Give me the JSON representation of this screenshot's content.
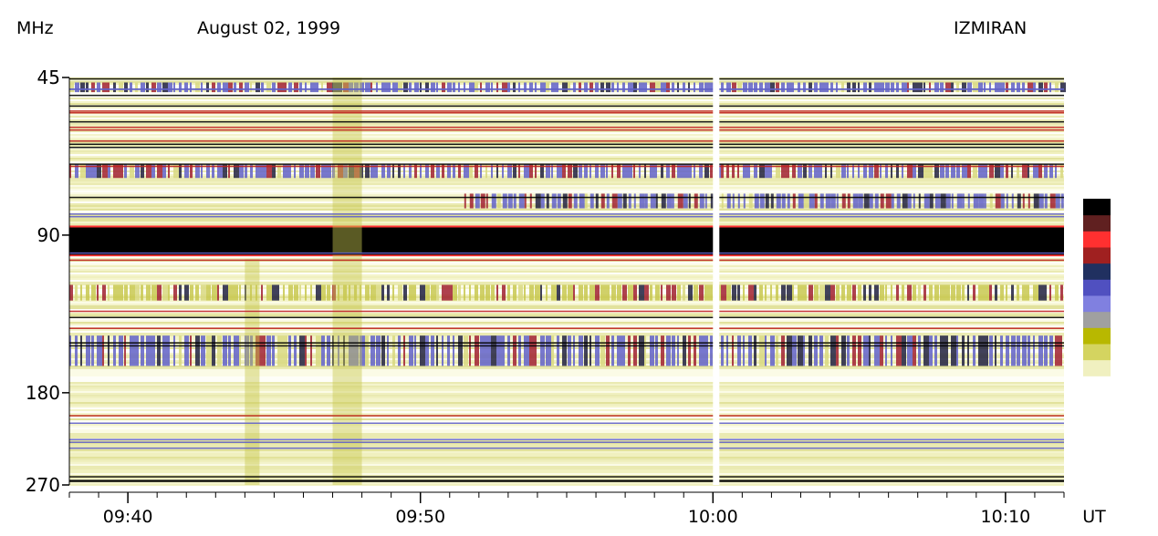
{
  "header": {
    "unit_label": "MHz",
    "date": "August 02, 1999",
    "observatory": "IZMIRAN"
  },
  "chart_data": {
    "type": "heatmap",
    "title": "August 02, 1999",
    "ylabel": "MHz",
    "xlabel": "UT",
    "y_scale": "log",
    "ylim": [
      45,
      270
    ],
    "xlim": [
      "09:38",
      "10:12"
    ],
    "y_ticks": [
      45,
      90,
      180,
      270
    ],
    "y_tick_labels": [
      "45",
      "90",
      "180",
      "270"
    ],
    "x_ticks": [
      "09:40",
      "09:50",
      "10:00",
      "10:10"
    ],
    "x_minor_tick_step_min": 1,
    "data_gap_time": "10:00",
    "colorbar": {
      "orientation": "vertical",
      "colors": [
        "#ffffff",
        "#f0f0c0",
        "#d4d460",
        "#b8b800",
        "#a0a0a0",
        "#8080e0",
        "#5050c0",
        "#203060",
        "#a02020",
        "#ff3030",
        "#602020",
        "#000000"
      ]
    },
    "features": [
      {
        "type": "strong-band",
        "freq_range": [
          87,
          98
        ],
        "time_range": [
          "09:38",
          "10:12"
        ],
        "level": "max"
      },
      {
        "type": "intermittent-band",
        "freq_range": [
          46,
          48
        ],
        "time_range": [
          "09:38",
          "10:12"
        ],
        "level": "high"
      },
      {
        "type": "intermittent-band",
        "freq_range": [
          66,
          70
        ],
        "time_range": [
          "09:38",
          "10:12"
        ],
        "level": "high"
      },
      {
        "type": "intermittent-band",
        "freq_range": [
          75,
          80
        ],
        "time_range": [
          "09:51:30",
          "10:12"
        ],
        "level": "high"
      },
      {
        "type": "intermittent-band",
        "freq_range": [
          112,
          120
        ],
        "time_range": [
          "09:38",
          "10:12"
        ],
        "level": "medium"
      },
      {
        "type": "intermittent-band",
        "freq_range": [
          140,
          160
        ],
        "time_range": [
          "09:38",
          "10:12"
        ],
        "level": "high"
      },
      {
        "type": "burst",
        "freq_range": [
          45,
          270
        ],
        "time_range": [
          "09:47",
          "09:48"
        ],
        "level": "medium"
      },
      {
        "type": "burst",
        "freq_range": [
          100,
          270
        ],
        "time_range": [
          "09:44",
          "09:44:30"
        ],
        "level": "medium"
      }
    ]
  }
}
